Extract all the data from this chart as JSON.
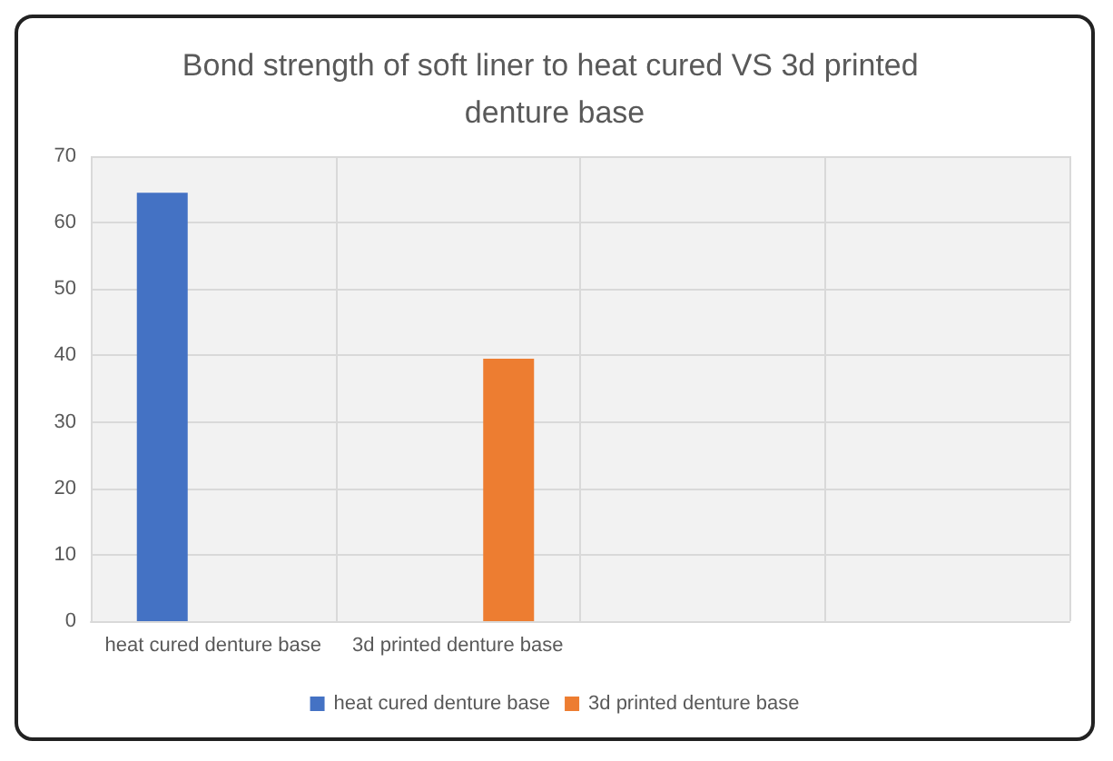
{
  "chart_data": {
    "type": "bar",
    "title": "Bond strength of soft liner to heat cured VS 3d printed denture base",
    "categories": [
      "heat cured denture base",
      "3d printed denture base",
      null,
      null
    ],
    "series": [
      {
        "name": "heat cured denture base",
        "color": "#4472c4",
        "values": [
          64.5,
          null,
          null,
          null
        ]
      },
      {
        "name": "3d printed denture base",
        "color": "#ed7d31",
        "values": [
          null,
          39.5,
          null,
          null
        ]
      }
    ],
    "ylim": [
      0,
      70
    ],
    "yticks": [
      0,
      10,
      20,
      30,
      40,
      50,
      60,
      70
    ],
    "grid": true,
    "legend": "bottom"
  }
}
